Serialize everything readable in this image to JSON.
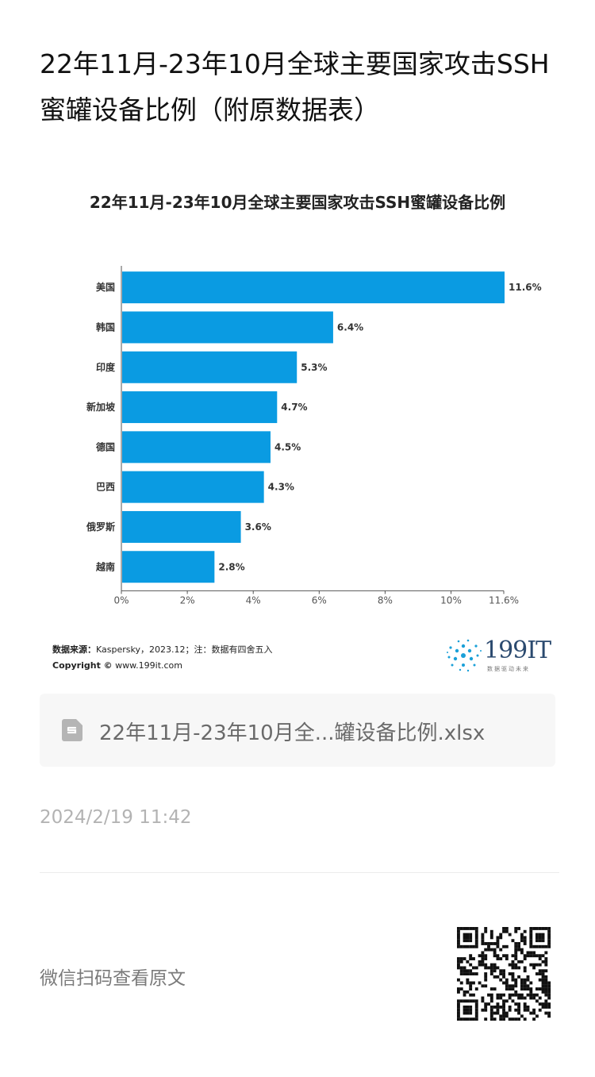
{
  "article": {
    "title": "22年11月-23年10月全球主要国家攻击SSH蜜罐设备比例（附原数据表）"
  },
  "chart_source": {
    "label": "数据来源：",
    "text": "Kaspersky，2023.12；注：数据有四舍五入",
    "copyright_label": "Copyright ©",
    "copyright_url": "www.199it.com"
  },
  "brand": {
    "name": "199IT",
    "slogan": "数据驱动未来"
  },
  "attachment": {
    "file_name": "22年11月-23年10月全...罐设备比例.xlsx",
    "icon": "spreadsheet-file-icon"
  },
  "post": {
    "date": "2024/2/19 11:42"
  },
  "footer": {
    "scan_label": "微信扫码查看原文",
    "qr_icon": "qr-code-icon"
  },
  "colors": {
    "bar": "#0a9be2",
    "brand": "#2b4a6f",
    "accent_dots": "#1aa0d8"
  },
  "chart_data": {
    "type": "bar",
    "orientation": "horizontal",
    "title": "22年11月-23年10月全球主要国家攻击SSH蜜罐设备比例",
    "categories": [
      "美国",
      "韩国",
      "印度",
      "新加坡",
      "德国",
      "巴西",
      "俄罗斯",
      "越南"
    ],
    "values": [
      11.6,
      6.4,
      5.3,
      4.7,
      4.5,
      4.3,
      3.6,
      2.8
    ],
    "value_labels": [
      "11.6%",
      "6.4%",
      "5.3%",
      "4.7%",
      "4.5%",
      "4.3%",
      "3.6%",
      "2.8%"
    ],
    "x_ticks": [
      0,
      2,
      4,
      6,
      8,
      10,
      11.6
    ],
    "x_tick_labels": [
      "0%",
      "2%",
      "4%",
      "6%",
      "8%",
      "10%",
      "11.6%"
    ],
    "xlim": [
      0,
      11.6
    ],
    "grid": false,
    "legend": "none"
  }
}
